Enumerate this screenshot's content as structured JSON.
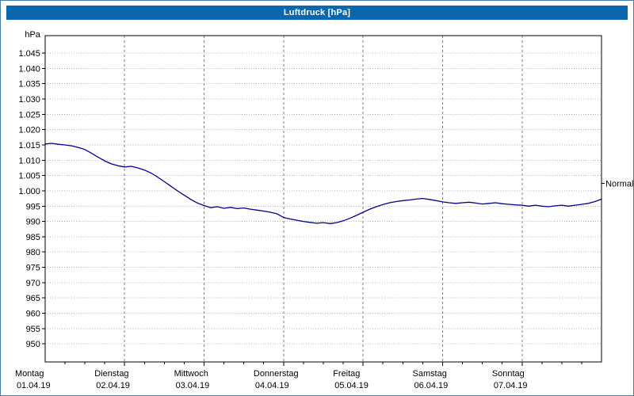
{
  "window": {
    "title": "Luftdruck [hPa]",
    "titlebar_color": "#0a67ae"
  },
  "chart_data": {
    "type": "line",
    "title": "Luftdruck [hPa]",
    "unit_label": "hPa",
    "grid": {
      "horizontal_dotted": true,
      "vertical_dashed": true
    },
    "ylim": [
      944,
      1051
    ],
    "y_ticks": [
      1045,
      1040,
      1035,
      1030,
      1025,
      1020,
      1015,
      1010,
      1005,
      1000,
      995,
      990,
      985,
      980,
      975,
      970,
      965,
      960,
      955,
      950
    ],
    "y_tick_labels": [
      "1.045",
      "1.040",
      "1.035",
      "1.030",
      "1.025",
      "1.020",
      "1.015",
      "1.010",
      "1.005",
      "1.000",
      "995",
      "990",
      "985",
      "980",
      "975",
      "970",
      "965",
      "960",
      "955",
      "950"
    ],
    "x_range_hours": [
      0,
      168
    ],
    "x_days": [
      {
        "name": "Montag",
        "date": "01.04.19"
      },
      {
        "name": "Dienstag",
        "date": "02.04.19"
      },
      {
        "name": "Mittwoch",
        "date": "03.04.19"
      },
      {
        "name": "Donnerstag",
        "date": "04.04.19"
      },
      {
        "name": "Freitag",
        "date": "05.04.19"
      },
      {
        "name": "Samstag",
        "date": "06.04.19"
      },
      {
        "name": "Sonntag",
        "date": "07.04.19"
      }
    ],
    "normal_marker": {
      "label": "Normal",
      "value": 1002.5
    },
    "series": [
      {
        "name": "Luftdruck",
        "color": "#00008b",
        "x_hours": [
          0,
          2,
          4,
          6,
          8,
          10,
          12,
          14,
          16,
          18,
          20,
          22,
          24,
          26,
          28,
          30,
          32,
          34,
          36,
          38,
          40,
          42,
          44,
          46,
          48,
          50,
          52,
          54,
          56,
          58,
          60,
          62,
          64,
          66,
          68,
          70,
          72,
          74,
          76,
          78,
          80,
          82,
          84,
          86,
          88,
          90,
          92,
          94,
          96,
          98,
          100,
          102,
          104,
          106,
          108,
          110,
          112,
          114,
          116,
          118,
          120,
          122,
          124,
          126,
          128,
          130,
          132,
          134,
          136,
          138,
          140,
          142,
          144,
          146,
          148,
          150,
          152,
          154,
          156,
          158,
          160,
          162,
          164,
          166,
          168
        ],
        "values": [
          1015.3,
          1015.5,
          1015.2,
          1015.0,
          1014.7,
          1014.2,
          1013.5,
          1012.3,
          1011.0,
          1009.8,
          1008.8,
          1008.2,
          1007.8,
          1008.0,
          1007.5,
          1006.8,
          1005.8,
          1004.5,
          1003.0,
          1001.5,
          1000.0,
          998.6,
          997.2,
          996.0,
          995.2,
          994.5,
          994.8,
          994.3,
          994.6,
          994.2,
          994.4,
          994.0,
          993.7,
          993.4,
          993.0,
          992.5,
          991.3,
          990.8,
          990.4,
          990.0,
          989.7,
          989.4,
          989.6,
          989.3,
          989.6,
          990.2,
          991.0,
          992.0,
          993.0,
          994.0,
          994.8,
          995.5,
          996.1,
          996.5,
          996.8,
          997.0,
          997.3,
          997.5,
          997.2,
          996.8,
          996.4,
          996.1,
          995.9,
          996.1,
          996.3,
          996.0,
          995.7,
          995.9,
          996.1,
          995.8,
          995.6,
          995.4,
          995.3,
          995.0,
          995.3,
          995.0,
          994.8,
          995.1,
          995.3,
          995.0,
          995.3,
          995.6,
          995.9,
          996.5,
          997.3
        ]
      }
    ],
    "colors": {
      "line": "#00008b",
      "h_grid": "#b5b5b5",
      "v_grid": "#7d7d7d",
      "axis": "#000000"
    }
  }
}
